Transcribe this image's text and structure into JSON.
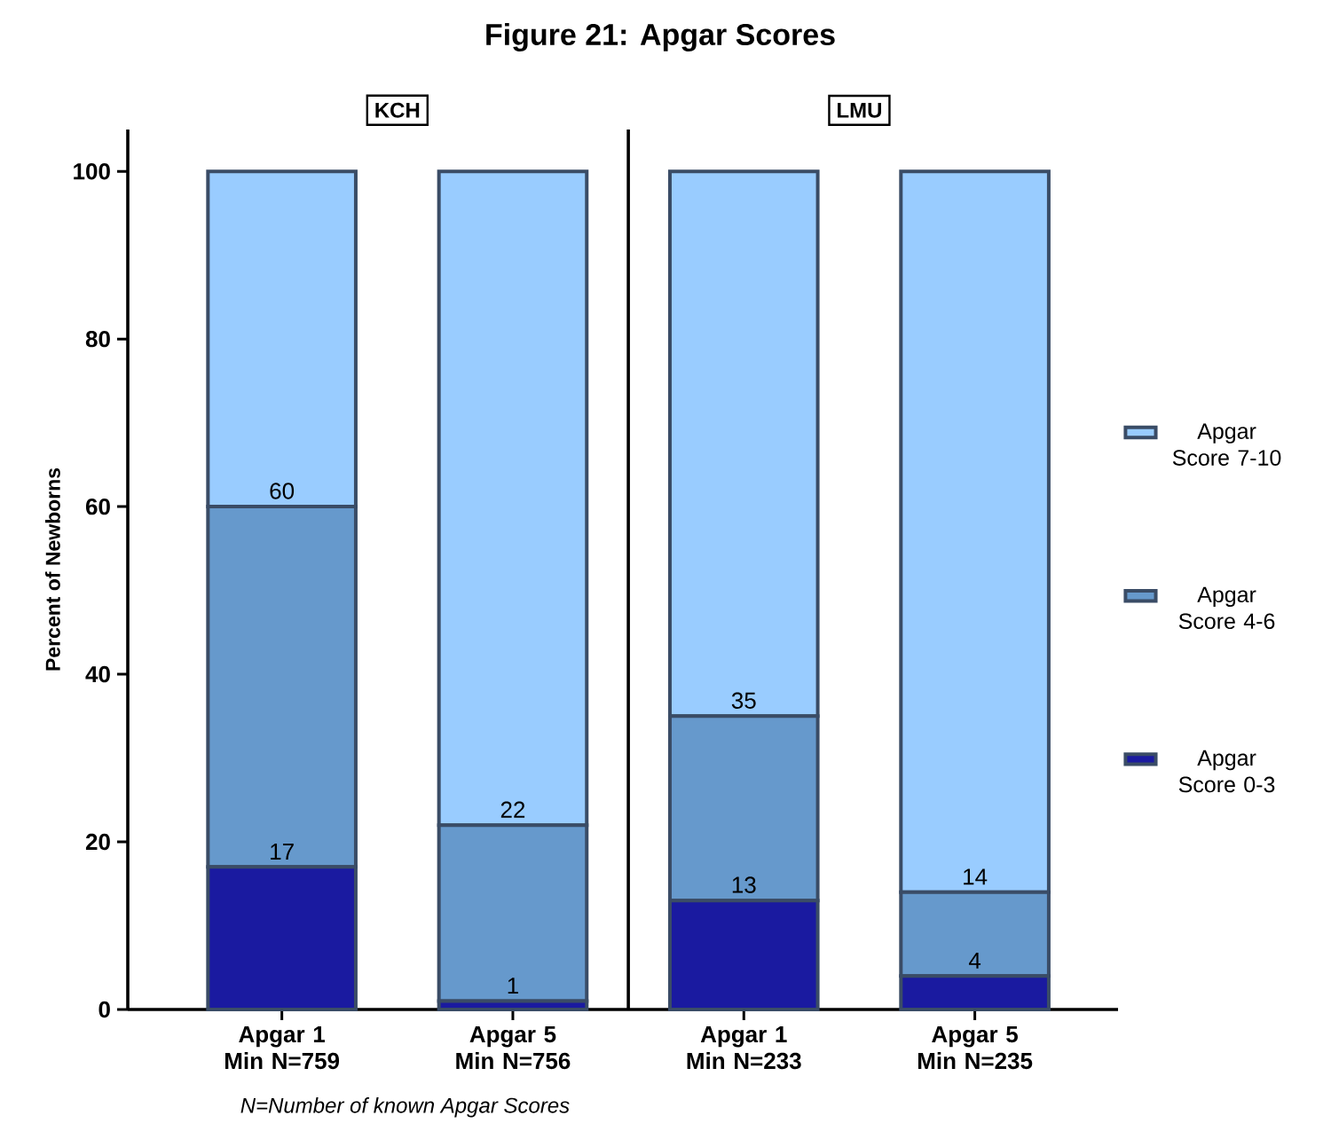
{
  "chart_data": {
    "type": "bar",
    "stacked": true,
    "title": "Figure 21: Apgar Scores",
    "ylabel": "Percent of Newborns",
    "categories": [
      "Apgar 1 Min N=759",
      "Apgar 5 Min N=756",
      "Apgar 1 Min N=233",
      "Apgar 5 Min N=235"
    ],
    "series": [
      {
        "name": "Apgar Score 0-3",
        "color": "#1a1aa0",
        "values": [
          17,
          1,
          13,
          4
        ]
      },
      {
        "name": "Apgar Score 4-6",
        "color": "#6699cc",
        "values": [
          43,
          21,
          22,
          10
        ]
      },
      {
        "name": "Apgar Score 7-10",
        "color": "#99ccff",
        "values": [
          40,
          78,
          65,
          86
        ]
      }
    ],
    "ylim": [
      0,
      105
    ],
    "yticks": [
      0,
      20,
      40,
      60,
      80,
      100
    ],
    "grid": false,
    "legend": "right",
    "annotations": [
      "KCH",
      "LMU",
      "N=Number of known Apgar Scores",
      {
        "text": "17",
        "x": "Apgar 1 Min N=759",
        "y": 17
      },
      {
        "text": "1",
        "x": "Apgar 5 Min N=756",
        "y": 1
      },
      {
        "text": "13",
        "x": "Apgar 1 Min N=233",
        "y": 13
      },
      {
        "text": "4",
        "x": "Apgar 5 Min N=235",
        "y": 4
      },
      {
        "text": "60",
        "x": "Apgar 1 Min N=759",
        "y": 60
      },
      {
        "text": "22",
        "x": "Apgar 5 Min N=756",
        "y": 22
      },
      {
        "text": "35",
        "x": "Apgar 1 Min N=233",
        "y": 35
      },
      {
        "text": "14",
        "x": "Apgar 5 Min N=235",
        "y": 14
      }
    ]
  }
}
